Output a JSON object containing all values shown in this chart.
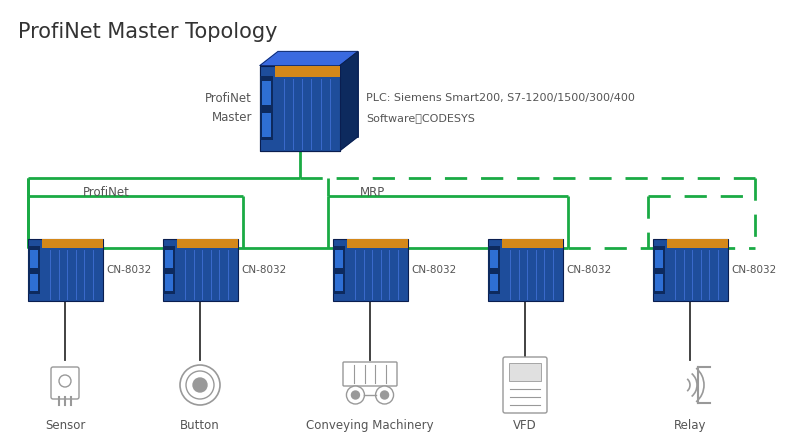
{
  "title": "ProfiNet Master Topology",
  "title_fontsize": 15,
  "title_color": "#333333",
  "background_color": "#ffffff",
  "green": "#1aaa44",
  "plc_label": "ProfiNet\nMaster",
  "plc_info_line1": "PLC: Siemens Smart200, S7-1200/1500/300/400",
  "plc_info_line2": "Software：CODESYS",
  "profinet_label": "ProfiNet",
  "mrp_label": "MRP",
  "module_label": "CN-8032",
  "device_labels": [
    "Sensor",
    "Button",
    "Conveying Machinery",
    "VFD",
    "Relay"
  ],
  "module_color_dark": "#0d2a5e",
  "module_color_mid": "#1e4d9b",
  "module_color_light": "#2e6fd4",
  "connector_color": "#d4881a",
  "device_color": "#999999",
  "lw_bus": 2.0
}
